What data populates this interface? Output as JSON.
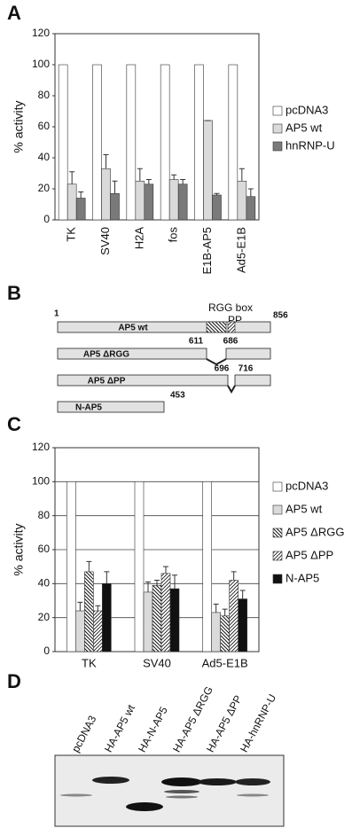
{
  "panel_labels": [
    "A",
    "B",
    "C",
    "D"
  ],
  "chart_data": [
    {
      "type": "bar",
      "y_label": "% activity",
      "categories": [
        "TK",
        "SV40",
        "H2A",
        "fos",
        "E1B-AP5",
        "Ad5-E1B"
      ],
      "series": [
        {
          "name": "pcDNA3",
          "color": "#ffffff",
          "values": [
            100,
            100,
            100,
            100,
            100,
            100
          ]
        },
        {
          "name": "AP5 wt",
          "color": "#dadada",
          "values": [
            23,
            33,
            25,
            26,
            64,
            25
          ],
          "errors": [
            8,
            9,
            8,
            3,
            0,
            8
          ]
        },
        {
          "name": "hnRNP-U",
          "color": "#7a7a7a",
          "values": [
            14,
            17,
            23,
            23,
            16,
            15
          ],
          "errors": [
            4,
            8,
            3,
            3,
            1,
            5
          ]
        }
      ],
      "ylim": [
        0,
        120
      ],
      "yticks": [
        0,
        20,
        40,
        60,
        80,
        100,
        120
      ],
      "grid": false
    },
    {
      "type": "bar",
      "y_label": "% activity",
      "categories": [
        "TK",
        "SV40",
        "Ad5-E1B"
      ],
      "series": [
        {
          "name": "pcDNA3",
          "color": "#ffffff",
          "values": [
            100,
            100,
            100
          ]
        },
        {
          "name": "AP5 wt",
          "color": "#dadada",
          "values": [
            24,
            35,
            23
          ],
          "errors": [
            5,
            6,
            5
          ]
        },
        {
          "name": "AP5 ΔRGG",
          "color": "#ffffff",
          "pattern": "hatch-back",
          "values": [
            47,
            39,
            21
          ],
          "errors": [
            6,
            3,
            4
          ]
        },
        {
          "name": "AP5 ΔPP",
          "color": "#ffffff",
          "pattern": "hatch-fwd",
          "values": [
            24,
            46,
            42
          ],
          "errors": [
            3,
            4,
            5
          ]
        },
        {
          "name": "N-AP5",
          "color": "#111111",
          "values": [
            40,
            37,
            31
          ],
          "errors": [
            7,
            8,
            5
          ]
        }
      ],
      "ylim": [
        0,
        120
      ],
      "yticks": [
        0,
        20,
        40,
        60,
        80,
        100,
        120
      ],
      "grid": true
    }
  ],
  "construct_map": {
    "start": 1,
    "end": 856,
    "domains": [
      "RGG box",
      "PP"
    ],
    "constructs": [
      {
        "name": "AP5 wt"
      },
      {
        "name": "AP5 ΔRGG",
        "positions": [
          611,
          686
        ]
      },
      {
        "name": "AP5 ΔPP",
        "positions": [
          696,
          716
        ]
      },
      {
        "name": "N-AP5",
        "positions": [
          453
        ]
      }
    ]
  },
  "western_blot": {
    "lanes": [
      "pcDNA3",
      "HA-AP5 wt",
      "HA-N-AP5",
      "HA-AP5 ΔRGG",
      "HA-AP5 ΔPP",
      "HA-hnRNP-U"
    ]
  }
}
